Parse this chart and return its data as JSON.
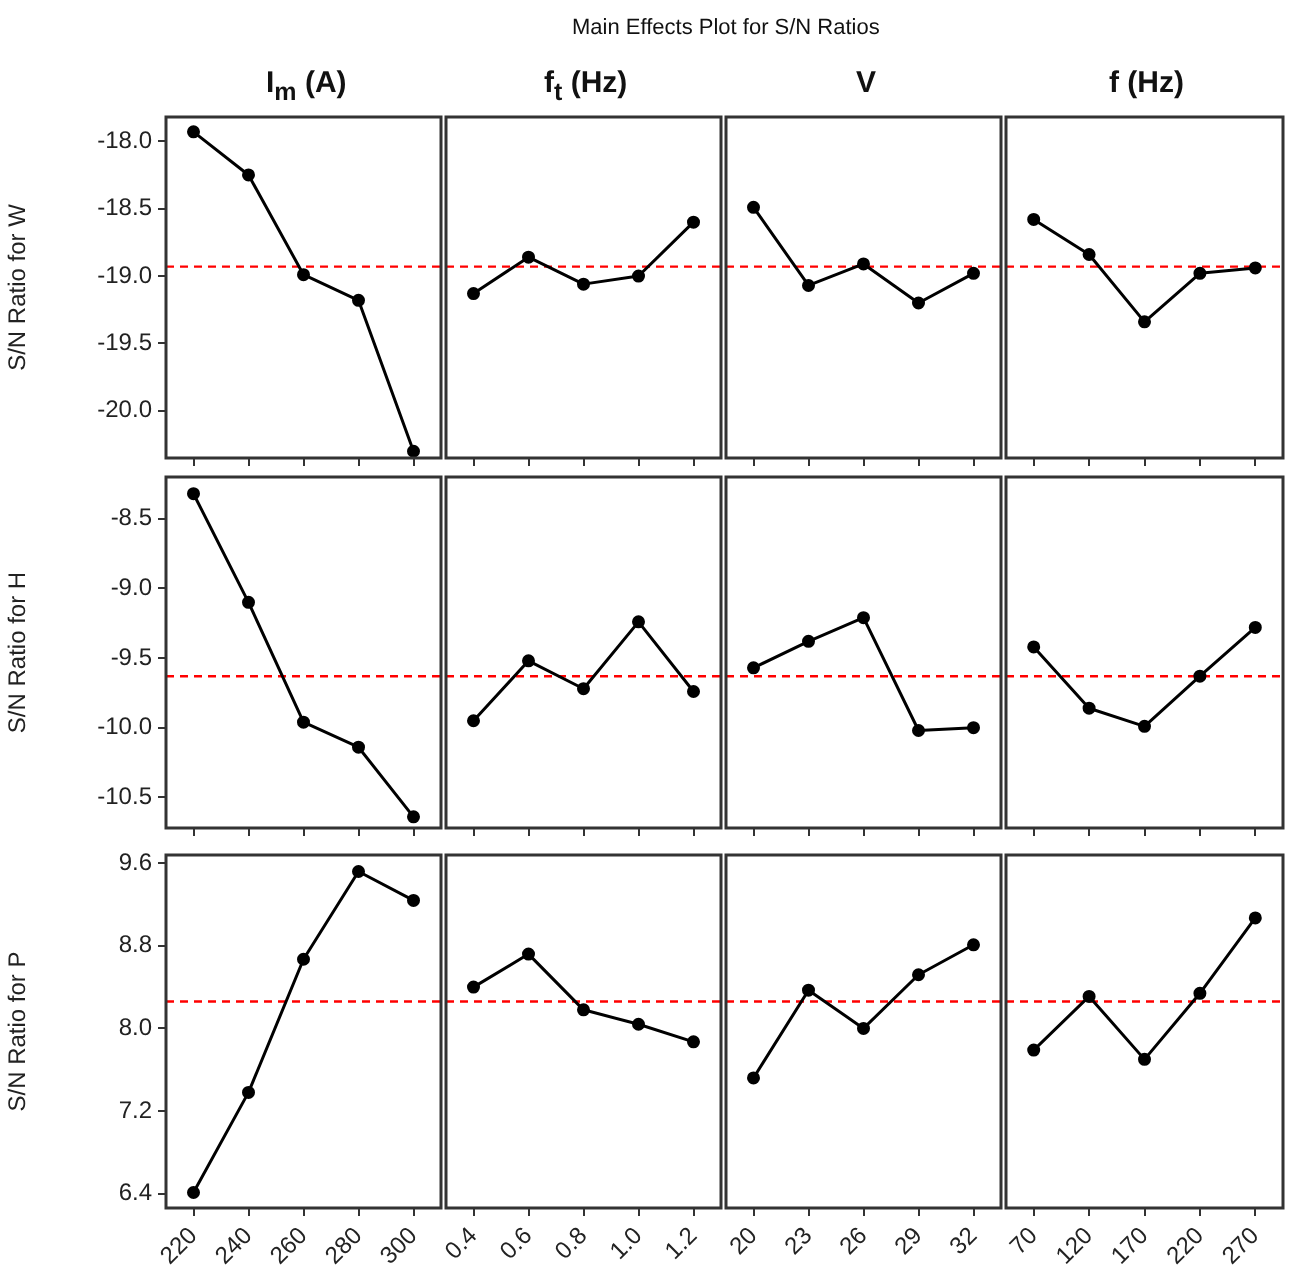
{
  "chart_data": [
    {
      "type": "other",
      "title": "Main Effects Plot for S/N Ratios"
    },
    {
      "type": "line",
      "title": "I$_{m}$ (A)",
      "ylabel": "S/N Ratio for W",
      "categories": [
        "220",
        "240",
        "260",
        "280",
        "300"
      ],
      "values": [
        -17.93,
        -18.25,
        -18.99,
        -19.18,
        -20.3
      ],
      "color": "#000000",
      "marker": "circle",
      "ylim": [
        -20.35,
        -17.82
      ],
      "yticks": [
        {
          "value": -18,
          "label": "-18.0"
        },
        -18.5,
        {
          "value": -19,
          "label": "-19.0"
        },
        -19.5,
        {
          "value": -20,
          "label": "-20.0"
        }
      ],
      "tick_labels": "y",
      "ref_lines": [
        {
          "axis": "y",
          "value": -18.93,
          "color": "#ff0000",
          "line_style": "dashed"
        }
      ]
    },
    {
      "type": "line",
      "title": "f$_{t}$ (Hz)",
      "categories": [
        "0.4",
        "0.6",
        "0.8",
        "1.0",
        "1.2"
      ],
      "values": [
        -19.13,
        -18.86,
        -19.06,
        -19.0,
        -18.6
      ],
      "color": "#000000",
      "marker": "circle",
      "ylim": [
        -20.35,
        -17.82
      ],
      "tick_labels": false,
      "ref_lines": [
        {
          "axis": "y",
          "value": -18.93,
          "color": "#ff0000",
          "line_style": "dashed"
        }
      ]
    },
    {
      "type": "line",
      "title": "V",
      "categories": [
        "20",
        "23",
        "26",
        "29",
        "32"
      ],
      "values": [
        -18.49,
        -19.07,
        -18.91,
        -19.2,
        -18.98
      ],
      "color": "#000000",
      "marker": "circle",
      "ylim": [
        -20.35,
        -17.82
      ],
      "tick_labels": false,
      "ref_lines": [
        {
          "axis": "y",
          "value": -18.93,
          "color": "#ff0000",
          "line_style": "dashed"
        }
      ]
    },
    {
      "type": "line",
      "title": "f (Hz)",
      "categories": [
        "70",
        "120",
        "170",
        "220",
        "270"
      ],
      "values": [
        -18.58,
        -18.84,
        -19.34,
        -18.98,
        -18.94
      ],
      "color": "#000000",
      "marker": "circle",
      "ylim": [
        -20.35,
        -17.82
      ],
      "tick_labels": false,
      "ref_lines": [
        {
          "axis": "y",
          "value": -18.93,
          "color": "#ff0000",
          "line_style": "dashed"
        }
      ]
    },
    {
      "type": "line",
      "ylabel": "S/N Ratio for H",
      "categories": [
        "220",
        "240",
        "260",
        "280",
        "300"
      ],
      "values": [
        -8.32,
        -9.1,
        -9.96,
        -10.14,
        -10.64
      ],
      "color": "#000000",
      "marker": "circle",
      "ylim": [
        -10.72,
        -8.2
      ],
      "yticks": [
        -8.5,
        {
          "value": -9,
          "label": "-9.0"
        },
        -9.5,
        {
          "value": -10,
          "label": "-10.0"
        },
        -10.5
      ],
      "tick_labels": "y",
      "ref_lines": [
        {
          "axis": "y",
          "value": -9.63,
          "color": "#ff0000",
          "line_style": "dashed"
        }
      ]
    },
    {
      "type": "line",
      "categories": [
        "0.4",
        "0.6",
        "0.8",
        "1.0",
        "1.2"
      ],
      "values": [
        -9.95,
        -9.52,
        -9.72,
        -9.24,
        -9.74
      ],
      "color": "#000000",
      "marker": "circle",
      "ylim": [
        -10.72,
        -8.2
      ],
      "tick_labels": false,
      "ref_lines": [
        {
          "axis": "y",
          "value": -9.63,
          "color": "#ff0000",
          "line_style": "dashed"
        }
      ]
    },
    {
      "type": "line",
      "categories": [
        "20",
        "23",
        "26",
        "29",
        "32"
      ],
      "values": [
        -9.57,
        -9.38,
        -9.21,
        -10.02,
        -10.0
      ],
      "color": "#000000",
      "marker": "circle",
      "ylim": [
        -10.72,
        -8.2
      ],
      "tick_labels": false,
      "ref_lines": [
        {
          "axis": "y",
          "value": -9.63,
          "color": "#ff0000",
          "line_style": "dashed"
        }
      ]
    },
    {
      "type": "line",
      "categories": [
        "70",
        "120",
        "170",
        "220",
        "270"
      ],
      "values": [
        -9.42,
        -9.86,
        -9.99,
        -9.63,
        -9.28
      ],
      "color": "#000000",
      "marker": "circle",
      "ylim": [
        -10.72,
        -8.2
      ],
      "tick_labels": false,
      "ref_lines": [
        {
          "axis": "y",
          "value": -9.63,
          "color": "#ff0000",
          "line_style": "dashed"
        }
      ]
    },
    {
      "type": "line",
      "ylabel": "S/N Ratio for P",
      "categories": [
        "220",
        "240",
        "260",
        "280",
        "300"
      ],
      "values": [
        6.41,
        7.38,
        8.67,
        9.52,
        9.24
      ],
      "color": "#000000",
      "marker": "circle",
      "ylim": [
        6.26,
        9.68
      ],
      "yticks": [
        6.4,
        7.2,
        {
          "value": 8,
          "label": "8.0"
        },
        8.8,
        9.6
      ],
      "ref_lines": [
        {
          "axis": "y",
          "value": 8.26,
          "color": "#ff0000",
          "line_style": "dashed"
        }
      ]
    },
    {
      "type": "line",
      "categories": [
        "0.4",
        "0.6",
        "0.8",
        "1.0",
        "1.2"
      ],
      "values": [
        8.4,
        8.72,
        8.18,
        8.04,
        7.87
      ],
      "color": "#000000",
      "marker": "circle",
      "ylim": [
        6.26,
        9.68
      ],
      "tick_labels": "x",
      "ref_lines": [
        {
          "axis": "y",
          "value": 8.26,
          "color": "#ff0000",
          "line_style": "dashed"
        }
      ]
    },
    {
      "type": "line",
      "categories": [
        "20",
        "23",
        "26",
        "29",
        "32"
      ],
      "values": [
        7.52,
        8.37,
        8.0,
        8.52,
        8.81
      ],
      "color": "#000000",
      "marker": "circle",
      "ylim": [
        6.26,
        9.68
      ],
      "tick_labels": "x",
      "ref_lines": [
        {
          "axis": "y",
          "value": 8.26,
          "color": "#ff0000",
          "line_style": "dashed"
        }
      ]
    },
    {
      "type": "line",
      "categories": [
        "70",
        "120",
        "170",
        "220",
        "270"
      ],
      "values": [
        7.79,
        8.31,
        7.7,
        8.34,
        9.07
      ],
      "color": "#000000",
      "marker": "circle",
      "ylim": [
        6.26,
        9.68
      ],
      "tick_labels": "x",
      "ref_lines": [
        {
          "axis": "y",
          "value": 8.26,
          "color": "#ff0000",
          "line_style": "dashed"
        }
      ]
    }
  ]
}
